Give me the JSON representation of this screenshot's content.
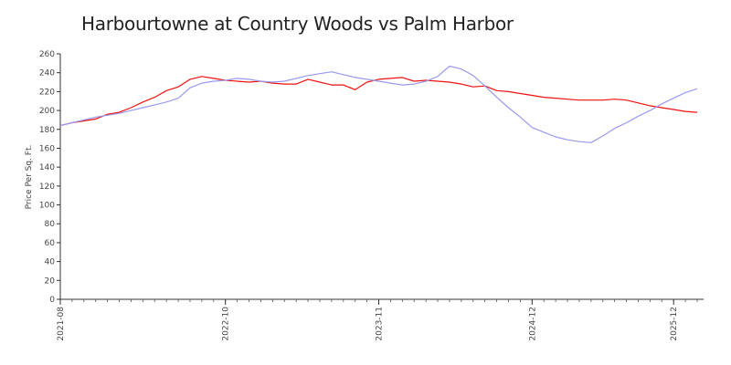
{
  "chart_data": {
    "type": "line",
    "title": "Harbourtowne at Country Woods vs Palm Harbor",
    "xlabel": "",
    "ylabel": "Price Per Sq. Ft.",
    "ylim": [
      0,
      260
    ],
    "y_ticks": [
      0,
      20,
      40,
      60,
      80,
      100,
      120,
      140,
      160,
      180,
      200,
      220,
      240,
      260
    ],
    "x_ticks": [
      "2021-08",
      "2022-10",
      "2023-11",
      "2024-12",
      "2025-12"
    ],
    "x_range": [
      "2021-08",
      "2026-02"
    ],
    "grid": false,
    "legend": "none",
    "series": [
      {
        "color": "#ee1111",
        "points": [
          [
            "2021-08",
            184
          ],
          [
            "2021-09",
            187
          ],
          [
            "2021-10",
            189
          ],
          [
            "2021-11",
            191
          ],
          [
            "2021-12",
            196
          ],
          [
            "2022-01",
            198
          ],
          [
            "2022-02",
            203
          ],
          [
            "2022-03",
            209
          ],
          [
            "2022-04",
            214
          ],
          [
            "2022-05",
            221
          ],
          [
            "2022-06",
            225
          ],
          [
            "2022-07",
            233
          ],
          [
            "2022-08",
            236
          ],
          [
            "2022-09",
            234
          ],
          [
            "2022-10",
            232
          ],
          [
            "2022-11",
            231
          ],
          [
            "2022-12",
            230
          ],
          [
            "2023-01",
            231
          ],
          [
            "2023-02",
            229
          ],
          [
            "2023-03",
            228
          ],
          [
            "2023-04",
            228
          ],
          [
            "2023-05",
            233
          ],
          [
            "2023-06",
            230
          ],
          [
            "2023-07",
            227
          ],
          [
            "2023-08",
            227
          ],
          [
            "2023-09",
            222
          ],
          [
            "2023-10",
            230
          ],
          [
            "2023-11",
            233
          ],
          [
            "2023-12",
            234
          ],
          [
            "2024-01",
            235
          ],
          [
            "2024-02",
            231
          ],
          [
            "2024-03",
            232
          ],
          [
            "2024-04",
            231
          ],
          [
            "2024-05",
            230
          ],
          [
            "2024-06",
            228
          ],
          [
            "2024-07",
            225
          ],
          [
            "2024-08",
            226
          ],
          [
            "2024-09",
            221
          ],
          [
            "2024-10",
            220
          ],
          [
            "2024-11",
            218
          ],
          [
            "2024-12",
            216
          ],
          [
            "2025-01",
            214
          ],
          [
            "2025-02",
            213
          ],
          [
            "2025-03",
            212
          ],
          [
            "2025-04",
            211
          ],
          [
            "2025-05",
            211
          ],
          [
            "2025-06",
            211
          ],
          [
            "2025-07",
            212
          ],
          [
            "2025-08",
            211
          ],
          [
            "2025-09",
            208
          ],
          [
            "2025-10",
            205
          ],
          [
            "2025-11",
            203
          ],
          [
            "2025-12",
            201
          ],
          [
            "2026-01",
            199
          ],
          [
            "2026-02",
            198
          ]
        ]
      },
      {
        "color": "#9999ee",
        "points": [
          [
            "2021-08",
            184
          ],
          [
            "2021-09",
            187
          ],
          [
            "2021-10",
            190
          ],
          [
            "2021-11",
            193
          ],
          [
            "2021-12",
            195
          ],
          [
            "2022-01",
            197
          ],
          [
            "2022-02",
            200
          ],
          [
            "2022-03",
            203
          ],
          [
            "2022-04",
            206
          ],
          [
            "2022-05",
            209
          ],
          [
            "2022-06",
            213
          ],
          [
            "2022-07",
            224
          ],
          [
            "2022-08",
            229
          ],
          [
            "2022-09",
            231
          ],
          [
            "2022-10",
            232
          ],
          [
            "2022-11",
            234
          ],
          [
            "2022-12",
            233
          ],
          [
            "2023-01",
            231
          ],
          [
            "2023-02",
            230
          ],
          [
            "2023-03",
            231
          ],
          [
            "2023-04",
            234
          ],
          [
            "2023-05",
            237
          ],
          [
            "2023-06",
            239
          ],
          [
            "2023-07",
            241
          ],
          [
            "2023-08",
            238
          ],
          [
            "2023-09",
            235
          ],
          [
            "2023-10",
            233
          ],
          [
            "2023-11",
            231
          ],
          [
            "2023-12",
            229
          ],
          [
            "2024-01",
            227
          ],
          [
            "2024-02",
            228
          ],
          [
            "2024-03",
            231
          ],
          [
            "2024-04",
            236
          ],
          [
            "2024-05",
            247
          ],
          [
            "2024-06",
            244
          ],
          [
            "2024-07",
            237
          ],
          [
            "2024-08",
            226
          ],
          [
            "2024-09",
            214
          ],
          [
            "2024-10",
            203
          ],
          [
            "2024-11",
            193
          ],
          [
            "2024-12",
            182
          ],
          [
            "2025-01",
            177
          ],
          [
            "2025-02",
            172
          ],
          [
            "2025-03",
            169
          ],
          [
            "2025-04",
            167
          ],
          [
            "2025-05",
            166
          ],
          [
            "2025-06",
            173
          ],
          [
            "2025-07",
            181
          ],
          [
            "2025-08",
            187
          ],
          [
            "2025-09",
            194
          ],
          [
            "2025-10",
            200
          ],
          [
            "2025-11",
            207
          ],
          [
            "2025-12",
            213
          ],
          [
            "2026-01",
            219
          ],
          [
            "2026-02",
            223
          ]
        ]
      }
    ]
  }
}
